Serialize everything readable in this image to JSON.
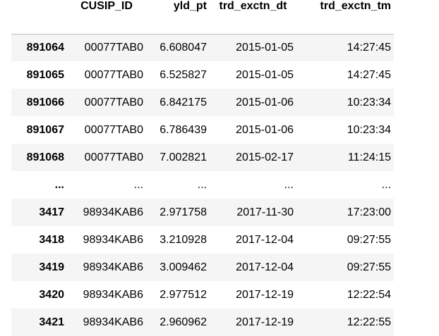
{
  "table": {
    "columns": [
      "",
      "CUSIP_ID",
      "yld_pt",
      "trd_exctn_dt",
      "trd_exctn_tm"
    ],
    "rows": [
      {
        "index": "891064",
        "cells": [
          "00077TAB0",
          "6.608047",
          "2015-01-05",
          "14:27:45"
        ]
      },
      {
        "index": "891065",
        "cells": [
          "00077TAB0",
          "6.525827",
          "2015-01-05",
          "14:27:45"
        ]
      },
      {
        "index": "891066",
        "cells": [
          "00077TAB0",
          "6.842175",
          "2015-01-06",
          "10:23:34"
        ]
      },
      {
        "index": "891067",
        "cells": [
          "00077TAB0",
          "6.786439",
          "2015-01-06",
          "10:23:34"
        ]
      },
      {
        "index": "891068",
        "cells": [
          "00077TAB0",
          "7.002821",
          "2015-02-17",
          "11:24:15"
        ]
      },
      {
        "index": "...",
        "cells": [
          "...",
          "...",
          "...",
          "..."
        ]
      },
      {
        "index": "3417",
        "cells": [
          "98934KAB6",
          "2.971758",
          "2017-11-30",
          "17:23:00"
        ]
      },
      {
        "index": "3418",
        "cells": [
          "98934KAB6",
          "3.210928",
          "2017-12-04",
          "09:27:55"
        ]
      },
      {
        "index": "3419",
        "cells": [
          "98934KAB6",
          "3.009462",
          "2017-12-04",
          "09:27:55"
        ]
      },
      {
        "index": "3420",
        "cells": [
          "98934KAB6",
          "2.977512",
          "2017-12-19",
          "12:22:54"
        ]
      },
      {
        "index": "3421",
        "cells": [
          "98934KAB6",
          "2.960962",
          "2017-12-19",
          "12:22:55"
        ]
      }
    ]
  }
}
